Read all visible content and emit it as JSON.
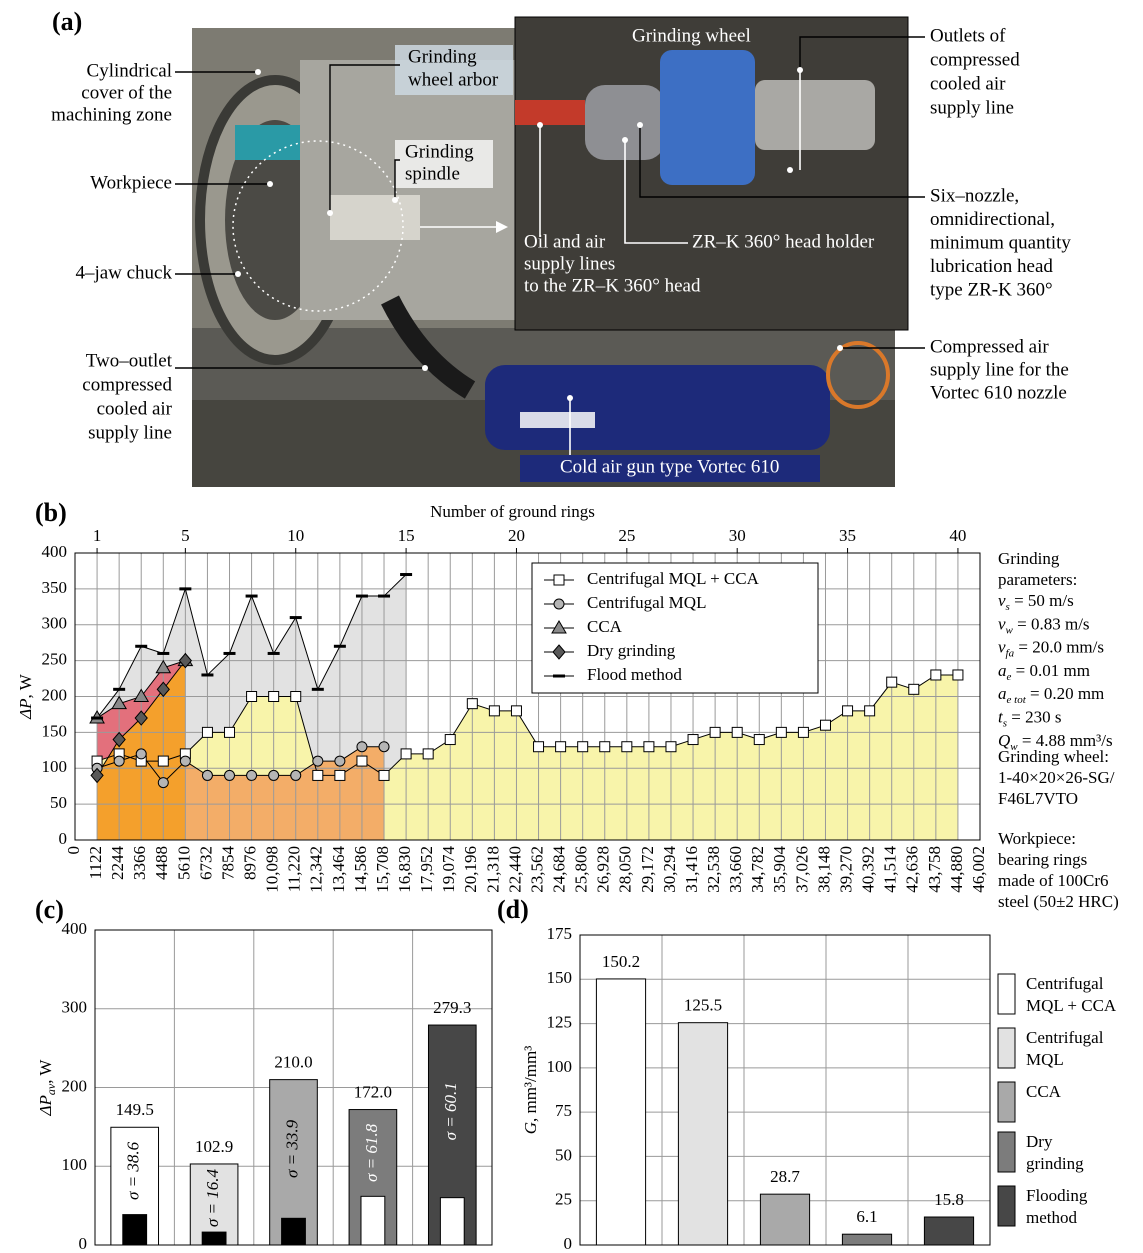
{
  "photo": {
    "panel": "(a)",
    "labels": [
      [
        "Cylindrical",
        "cover  of the",
        "machining zone"
      ],
      [
        "Grinding",
        "wheel arbor"
      ],
      [
        "Grinding",
        "spindle"
      ],
      [
        "Workpiece"
      ],
      [
        "4–jaw chuck"
      ],
      [
        "Two–outlet",
        "compressed",
        "cooled air",
        "supply line"
      ],
      [
        "Grinding wheel"
      ],
      [
        "Outlets of",
        "compressed",
        "cooled air",
        "supply line"
      ],
      [
        "Six–nozzle,",
        "omnidirectional,",
        "minimum quantity",
        "lubrication head",
        "type ZR-K 360°"
      ],
      [
        "Oil and air",
        "supply lines",
        "to the ZR–K 360° head"
      ],
      [
        "ZR–K 360° head holder"
      ],
      [
        "Compressed air",
        "supply line for the",
        "Vortec 610 nozzle"
      ],
      [
        "Cold air gun type Vortec 610"
      ]
    ]
  },
  "notes": {
    "title": [
      "Grinding",
      "parameters:"
    ],
    "params": [
      {
        "symbol": "v",
        "sub": "s",
        "text": " = 50 m/s"
      },
      {
        "symbol": "v",
        "sub": "w",
        "text": " = 0.83 m/s"
      },
      {
        "symbol": "v",
        "sub": "fa",
        "text": " = 20.0 mm/s"
      },
      {
        "symbol": "a",
        "sub": "e",
        "text": " = 0.01 mm"
      },
      {
        "symbol": "a",
        "sub": "e tot",
        "text": " = 0.20 mm"
      },
      {
        "symbol": "t",
        "sub": "s",
        "text": " = 230 s"
      },
      {
        "symbol": "Q",
        "sub": "w",
        "text": " = 4.88 mm³/s"
      }
    ],
    "wheel": [
      "Grinding wheel:",
      "1-40×20×26-SG/",
      "F46L7VTO"
    ],
    "workpiece": [
      "Workpiece:",
      "bearing rings",
      "made of 100Cr6",
      "steel (50±2 HRC)"
    ]
  },
  "chart_data": [
    {
      "type": "line",
      "panel": "(b)",
      "x2label": "Number of ground rings",
      "ylabel": "ΔP",
      "ylabel_unit": ", W",
      "grid": true,
      "legend": "top-center",
      "x": [
        1122,
        2244,
        3366,
        4488,
        5610,
        6732,
        7854,
        8976,
        10098,
        11220,
        12342,
        13464,
        14586,
        15708,
        16830,
        17952,
        19074,
        20196,
        21318,
        22440,
        23562,
        24684,
        25806,
        26928,
        28050,
        29172,
        30294,
        31416,
        32538,
        33660,
        34782,
        35904,
        37026,
        38148,
        39270,
        40392,
        41514,
        42636,
        43758,
        44880
      ],
      "xlim": [
        0,
        46002
      ],
      "xticks": [
        0,
        1122,
        2244,
        3366,
        4488,
        5610,
        6732,
        7854,
        8976,
        {
          "value": 10098,
          "label": "10,098"
        },
        {
          "value": 11220,
          "label": "11,220"
        },
        {
          "value": 12342,
          "label": "12,342"
        },
        {
          "value": 13464,
          "label": "13,464"
        },
        {
          "value": 14586,
          "label": "14,586"
        },
        {
          "value": 15708,
          "label": "15,708"
        },
        {
          "value": 16830,
          "label": "16,830"
        },
        {
          "value": 17952,
          "label": "17,952"
        },
        {
          "value": 19074,
          "label": "19,074"
        },
        {
          "value": 20196,
          "label": "20,196"
        },
        {
          "value": 21318,
          "label": "21,318"
        },
        {
          "value": 22440,
          "label": "22,440"
        },
        {
          "value": 23562,
          "label": "23,562"
        },
        {
          "value": 24684,
          "label": "24,684"
        },
        {
          "value": 25806,
          "label": "25,806"
        },
        {
          "value": 26928,
          "label": "26,928"
        },
        {
          "value": 28050,
          "label": "28,050"
        },
        {
          "value": 29172,
          "label": "29,172"
        },
        {
          "value": 30294,
          "label": "30,294"
        },
        {
          "value": 31416,
          "label": "31,416"
        },
        {
          "value": 32538,
          "label": "32,538"
        },
        {
          "value": 33660,
          "label": "33,660"
        },
        {
          "value": 34782,
          "label": "34,782"
        },
        {
          "value": 35904,
          "label": "35,904"
        },
        {
          "value": 37026,
          "label": "37,026"
        },
        {
          "value": 38148,
          "label": "38,148"
        },
        {
          "value": 39270,
          "label": "39,270"
        },
        {
          "value": 40392,
          "label": "40,392"
        },
        {
          "value": 41514,
          "label": "41,514"
        },
        {
          "value": 42636,
          "label": "42,636"
        },
        {
          "value": 43758,
          "label": "43,758"
        },
        {
          "value": 44880,
          "label": "44,880"
        },
        {
          "value": 46002,
          "label": "46,002"
        }
      ],
      "x2lim": [
        0,
        41
      ],
      "x2ticks": [
        1,
        5,
        10,
        15,
        20,
        25,
        30,
        35,
        40
      ],
      "ylim": [
        0,
        400
      ],
      "yticks": [
        0,
        50,
        100,
        150,
        200,
        250,
        300,
        350,
        400
      ],
      "series": [
        {
          "name": "Centrifugal MQL + CCA",
          "color": "#000000",
          "fill": "#f8f4aa",
          "marker": "square",
          "values": [
            110,
            120,
            110,
            110,
            120,
            150,
            150,
            200,
            200,
            200,
            90,
            90,
            110,
            90,
            120,
            120,
            140,
            190,
            180,
            180,
            130,
            130,
            130,
            130,
            130,
            130,
            130,
            140,
            150,
            150,
            140,
            150,
            150,
            160,
            180,
            180,
            220,
            210,
            230,
            230
          ]
        },
        {
          "name": "Centrifugal MQL",
          "color": "#000000",
          "fill": "#f3ad68",
          "marker": "circle",
          "values": [
            100,
            110,
            120,
            80,
            110,
            90,
            90,
            90,
            90,
            90,
            110,
            110,
            130,
            130,
            null,
            null,
            null,
            null,
            null,
            null,
            null,
            null,
            null,
            null,
            null,
            null,
            null,
            null,
            null,
            null,
            null,
            null,
            null,
            null,
            null,
            null,
            null,
            null,
            null,
            null
          ]
        },
        {
          "name": "CCA",
          "color": "#000000",
          "fill": "#e3707c",
          "marker": "triangle",
          "values": [
            170,
            190,
            200,
            240,
            250,
            null,
            null,
            null,
            null,
            null,
            null,
            null,
            null,
            null,
            null,
            null,
            null,
            null,
            null,
            null,
            null,
            null,
            null,
            null,
            null,
            null,
            null,
            null,
            null,
            null,
            null,
            null,
            null,
            null,
            null,
            null,
            null,
            null,
            null,
            null
          ]
        },
        {
          "name": "Dry grinding",
          "color": "#000000",
          "fill": "#f4a02c",
          "marker": "diamond",
          "values": [
            90,
            140,
            170,
            210,
            250,
            null,
            null,
            null,
            null,
            null,
            null,
            null,
            null,
            null,
            null,
            null,
            null,
            null,
            null,
            null,
            null,
            null,
            null,
            null,
            null,
            null,
            null,
            null,
            null,
            null,
            null,
            null,
            null,
            null,
            null,
            null,
            null,
            null,
            null,
            null
          ]
        },
        {
          "name": "Flood method",
          "color": "#000000",
          "fill": "#e2e2e2",
          "marker": "dash",
          "values": [
            170,
            210,
            270,
            260,
            350,
            230,
            260,
            340,
            260,
            310,
            210,
            270,
            340,
            340,
            370,
            null,
            null,
            null,
            null,
            null,
            null,
            null,
            null,
            null,
            null,
            null,
            null,
            null,
            null,
            null,
            null,
            null,
            null,
            null,
            null,
            null,
            null,
            null,
            null,
            null
          ]
        }
      ]
    },
    {
      "type": "bar",
      "panel": "(c)",
      "ylabel": "ΔP",
      "ylabel_sub": "av",
      "ylabel_unit": ", W",
      "grid": true,
      "categories": [
        null,
        null,
        null,
        null,
        null
      ],
      "values": [
        149.5,
        102.9,
        210.0,
        172.0,
        279.3
      ],
      "value_labels": [
        "149.5",
        "102.9",
        "210.0",
        "172.0",
        "279.3"
      ],
      "colors": [
        "#ffffff",
        "#e2e2e2",
        "#a9a9a9",
        "#7c7c7c",
        "#474747"
      ],
      "sigma": [
        38.6,
        16.4,
        33.9,
        61.8,
        60.1
      ],
      "sigma_labels": [
        "σ = 38.6",
        "σ = 16.4",
        "σ = 33.9",
        "σ = 61.8",
        "σ = 60.1"
      ],
      "sigma_colors": [
        "#000000",
        "#000000",
        "#000000",
        "#ffffff",
        "#ffffff"
      ],
      "ylim": [
        0,
        400
      ],
      "yticks": [
        0,
        100,
        200,
        300,
        400
      ]
    },
    {
      "type": "bar",
      "panel": "(d)",
      "ylabel": "G",
      "ylabel_unit": ", mm³/mm³",
      "grid": true,
      "categories": [
        null,
        null,
        null,
        null,
        null
      ],
      "values": [
        150.2,
        125.5,
        28.7,
        6.1,
        15.8
      ],
      "colors": [
        "#ffffff",
        "#e2e2e2",
        "#a9a9a9",
        "#7c7c7c",
        "#474747"
      ],
      "legend_labels": [
        [
          "Centrifugal",
          "MQL + CCA"
        ],
        [
          "Centrifugal",
          "MQL"
        ],
        [
          "CCA"
        ],
        [
          "Dry",
          "grinding"
        ],
        [
          "Flooding",
          "method"
        ]
      ],
      "ylim": [
        0,
        175
      ],
      "yticks": [
        0,
        25,
        50,
        75,
        100,
        125,
        150,
        175
      ]
    }
  ]
}
